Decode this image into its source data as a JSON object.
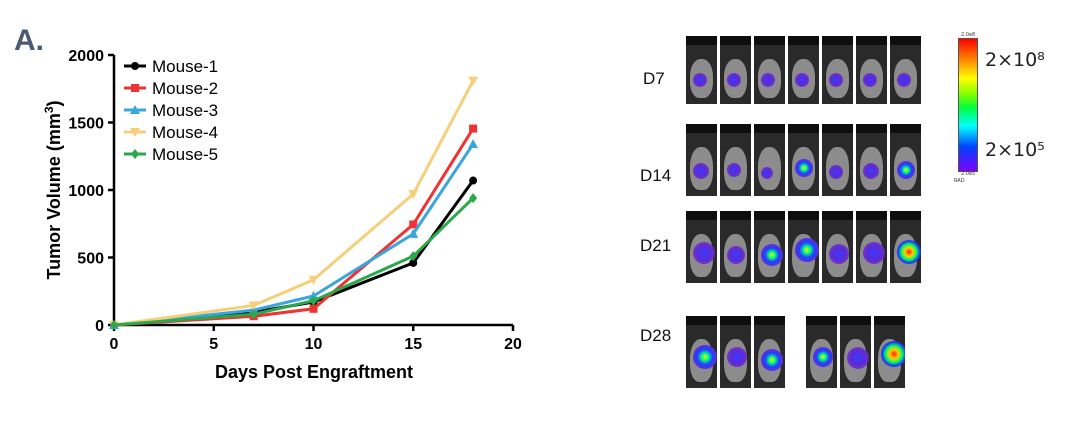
{
  "panel_label": "A.",
  "chart_data": {
    "type": "line",
    "title": "",
    "xlabel": "Days Post Engraftment",
    "ylabel": "Tumor Volume (mm",
    "ylabel_sup": "3",
    "ylabel_end": ")",
    "xlim": [
      0,
      20
    ],
    "ylim": [
      0,
      2000
    ],
    "xticks": [
      "0",
      "5",
      "10",
      "15",
      "20"
    ],
    "yticks": [
      "0",
      "500",
      "1000",
      "1500",
      "2000"
    ],
    "x": [
      0,
      7,
      10,
      15,
      18
    ],
    "legend_position": "top-left",
    "series": [
      {
        "name": "Mouse-1",
        "color": "#000000",
        "marker": "circle",
        "values": [
          0,
          95,
          170,
          460,
          1070
        ]
      },
      {
        "name": "Mouse-2",
        "color": "#ee3333",
        "marker": "square",
        "values": [
          0,
          65,
          120,
          745,
          1455
        ]
      },
      {
        "name": "Mouse-3",
        "color": "#3aa6dd",
        "marker": "triangle",
        "values": [
          0,
          110,
          215,
          675,
          1340
        ]
      },
      {
        "name": "Mouse-4",
        "color": "#f5d07a",
        "marker": "triangle-down",
        "values": [
          0,
          145,
          335,
          970,
          1810
        ]
      },
      {
        "name": "Mouse-5",
        "color": "#2aa84a",
        "marker": "diamond",
        "values": [
          0,
          80,
          180,
          510,
          940
        ]
      }
    ]
  },
  "imaging": {
    "rows": [
      {
        "label": "D7"
      },
      {
        "label": "D14"
      },
      {
        "label": "D21"
      },
      {
        "label": "D28"
      }
    ],
    "colorbar": {
      "high": "2×10⁸",
      "low": "2×10⁵",
      "tiny_top": "2.0e8",
      "tiny_bottom": "2.0e5",
      "tiny_unit": "RAD"
    }
  }
}
